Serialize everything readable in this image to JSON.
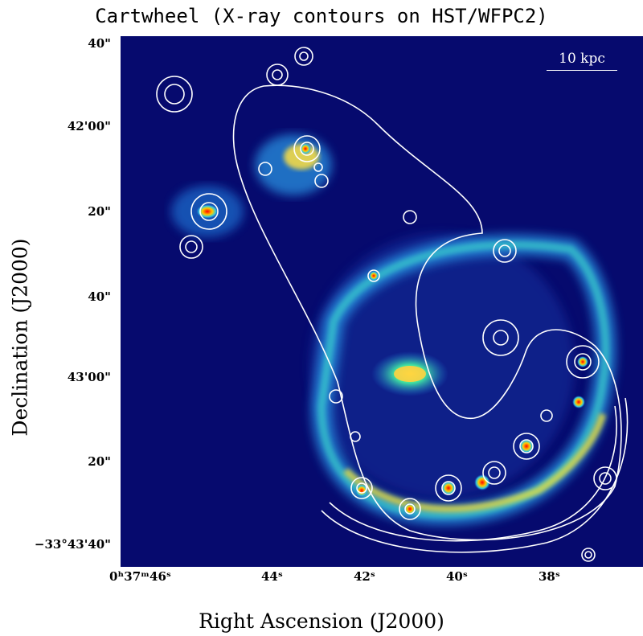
{
  "title": "Cartwheel (X-ray contours on HST/WFPC2)",
  "x_axis_label": "Right Ascension (J2000)",
  "y_axis_label": "Declination (J2000)",
  "scale_bar_label": "10 kpc",
  "y_ticks": [
    "40\"",
    "42'00\"",
    "20\"",
    "40\"",
    "43'00\"",
    "20\"",
    "−33°43'40\""
  ],
  "x_ticks": [
    "0ʰ37ᵐ46ˢ",
    "44ˢ",
    "42ˢ",
    "40ˢ",
    "38ˢ"
  ],
  "colors": {
    "background": "#060a6e",
    "contour": "#ffffff",
    "hotspot": "#e00000"
  }
}
